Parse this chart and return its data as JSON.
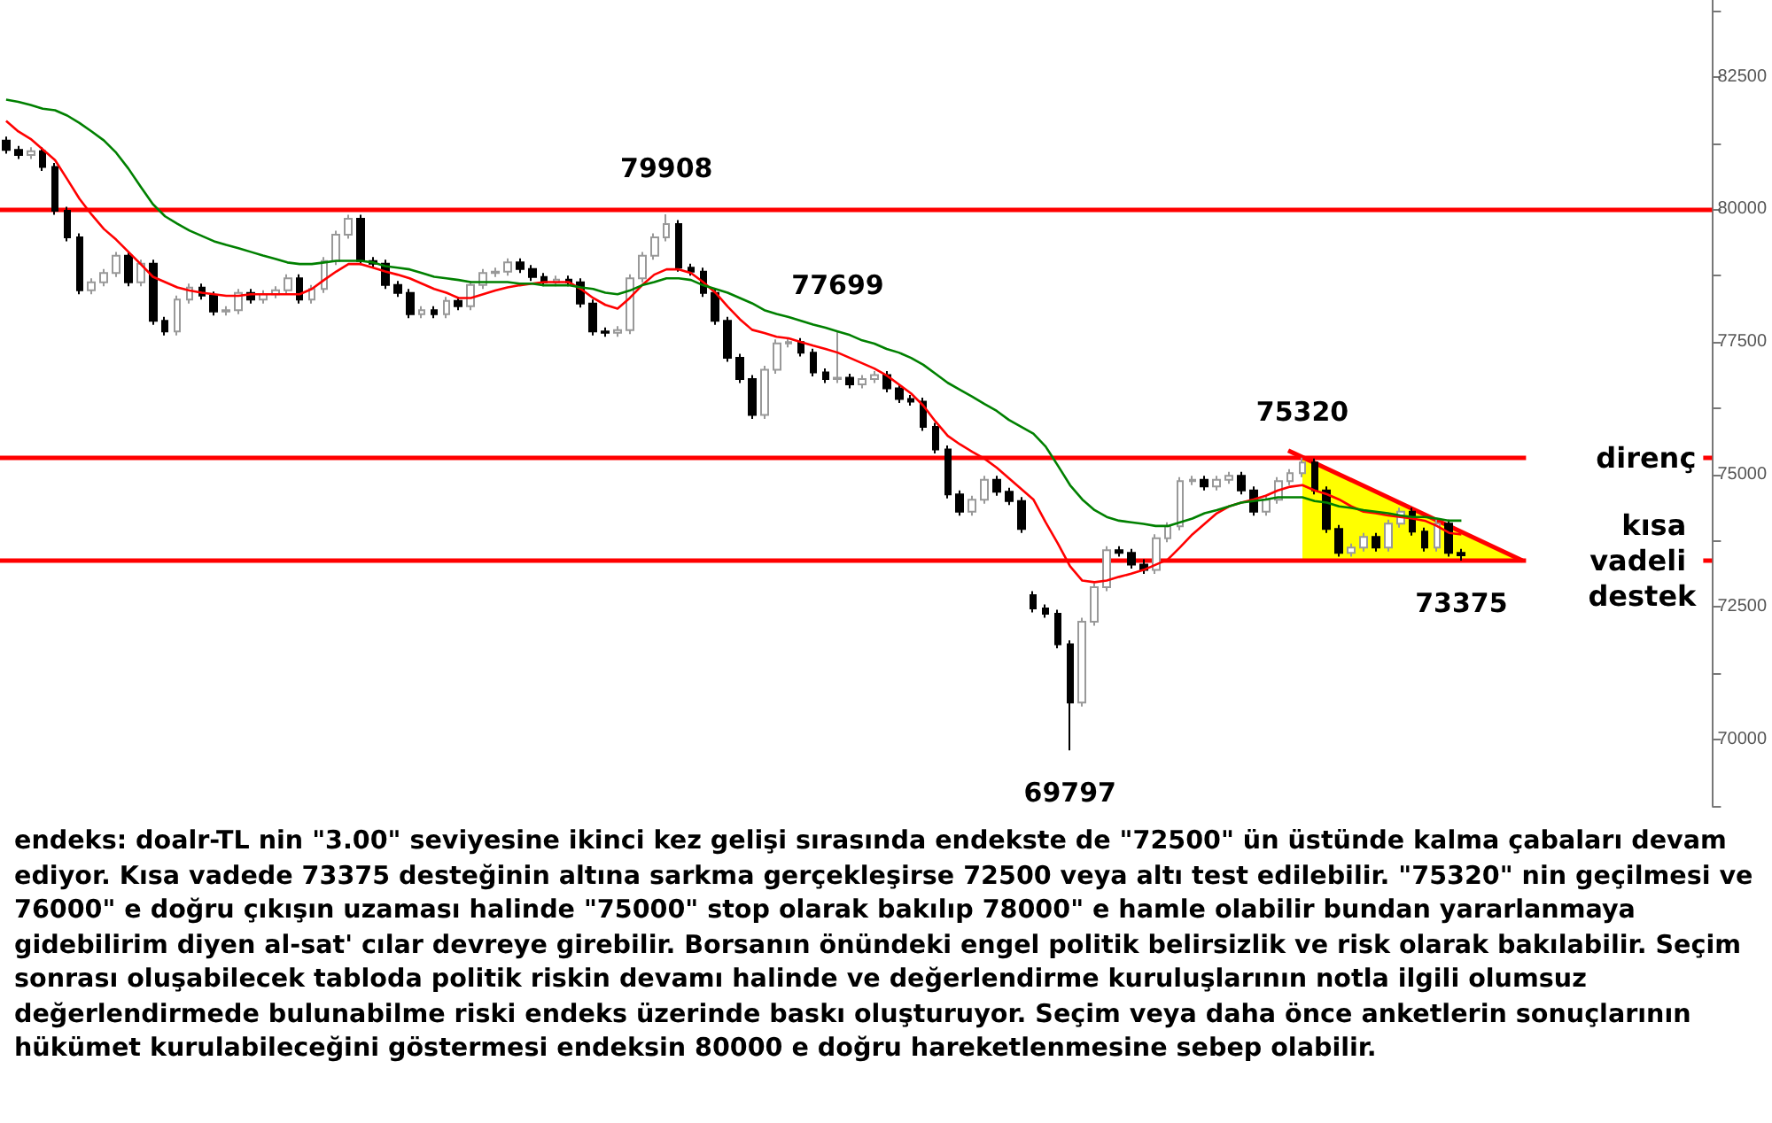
{
  "chart_data": {
    "type": "candlestick",
    "categories": [
      null,
      null,
      null,
      null,
      null,
      null,
      null,
      null,
      null,
      null,
      null,
      null,
      null,
      null,
      null,
      null,
      null,
      null,
      null,
      null,
      null,
      null,
      null,
      null,
      null,
      null,
      null,
      null,
      null,
      null,
      null,
      null,
      null,
      null,
      null,
      null,
      null,
      null,
      null,
      null,
      null,
      null,
      null,
      null,
      null,
      null,
      null,
      null,
      null,
      null,
      null,
      null,
      null,
      null,
      null,
      null,
      null,
      null,
      null,
      null,
      null,
      null,
      null,
      null,
      null,
      null,
      null,
      null,
      null,
      null,
      null,
      null,
      null,
      null,
      null,
      null,
      null,
      null,
      null,
      null,
      null,
      null,
      null,
      null,
      null,
      null,
      null,
      null,
      null,
      null,
      null,
      null,
      null,
      null,
      null,
      null,
      null,
      null,
      null,
      null,
      null,
      null,
      null,
      null,
      null,
      null,
      null,
      null,
      null,
      null,
      null,
      null,
      null,
      null,
      null,
      null,
      null,
      null,
      null,
      null,
      null,
      null,
      null,
      null,
      null,
      null,
      null,
      null,
      null,
      null,
      null,
      null,
      null,
      null,
      null,
      null,
      null,
      null,
      null,
      null
    ],
    "ohlc": [
      [
        81300,
        81375,
        81050,
        81125
      ],
      [
        81125,
        81200,
        80950,
        81025
      ],
      [
        81025,
        81175,
        80950,
        81100
      ],
      [
        81100,
        81175,
        80725,
        80800
      ],
      [
        80800,
        80875,
        79900,
        79975
      ],
      [
        79975,
        80050,
        79400,
        79475
      ],
      [
        79475,
        79550,
        78400,
        78475
      ],
      [
        78475,
        78700,
        78400,
        78625
      ],
      [
        78625,
        78875,
        78550,
        78800
      ],
      [
        78800,
        79200,
        78725,
        79125
      ],
      [
        79125,
        79200,
        78550,
        78625
      ],
      [
        78625,
        79050,
        78550,
        78975
      ],
      [
        78975,
        79050,
        77825,
        77900
      ],
      [
        77900,
        77975,
        77625,
        77700
      ],
      [
        77700,
        78375,
        77625,
        78300
      ],
      [
        78300,
        78600,
        78225,
        78525
      ],
      [
        78525,
        78600,
        78300,
        78375
      ],
      [
        78375,
        78450,
        78000,
        78075
      ],
      [
        78075,
        78175,
        78000,
        78100
      ],
      [
        78100,
        78500,
        78025,
        78425
      ],
      [
        78425,
        78500,
        78225,
        78300
      ],
      [
        78300,
        78475,
        78225,
        78400
      ],
      [
        78400,
        78550,
        78325,
        78475
      ],
      [
        78475,
        78775,
        78400,
        78700
      ],
      [
        78700,
        78775,
        78225,
        78300
      ],
      [
        78300,
        78575,
        78225,
        78500
      ],
      [
        78500,
        79100,
        78425,
        79025
      ],
      [
        79025,
        79600,
        78950,
        79525
      ],
      [
        79525,
        79900,
        79450,
        79825
      ],
      [
        79825,
        79900,
        78950,
        79025
      ],
      [
        79025,
        79100,
        78900,
        78975
      ],
      [
        78975,
        79050,
        78500,
        78575
      ],
      [
        78575,
        78650,
        78350,
        78425
      ],
      [
        78425,
        78500,
        77950,
        78025
      ],
      [
        78025,
        78175,
        77950,
        78100
      ],
      [
        78100,
        78175,
        77950,
        78025
      ],
      [
        78025,
        78350,
        77950,
        78275
      ],
      [
        78275,
        78350,
        78100,
        78175
      ],
      [
        78175,
        78650,
        78100,
        78575
      ],
      [
        78575,
        78875,
        78500,
        78800
      ],
      [
        78800,
        78900,
        78725,
        78825
      ],
      [
        78825,
        79075,
        78750,
        79000
      ],
      [
        79000,
        79075,
        78800,
        78875
      ],
      [
        78875,
        78950,
        78650,
        78725
      ],
      [
        78725,
        78800,
        78550,
        78625
      ],
      [
        78625,
        78750,
        78550,
        78675
      ],
      [
        78675,
        78750,
        78550,
        78625
      ],
      [
        78625,
        78700,
        78150,
        78225
      ],
      [
        78225,
        78300,
        77625,
        77700
      ],
      [
        77700,
        77775,
        77600,
        77675
      ],
      [
        77675,
        77800,
        77600,
        77725
      ],
      [
        77725,
        78775,
        77650,
        78700
      ],
      [
        78700,
        79200,
        78625,
        79125
      ],
      [
        79125,
        79550,
        79050,
        79475
      ],
      [
        79475,
        79908,
        79400,
        79725
      ],
      [
        79725,
        79800,
        78825,
        78900
      ],
      [
        78900,
        78975,
        78750,
        78825
      ],
      [
        78825,
        78900,
        78350,
        78425
      ],
      [
        78425,
        78500,
        77825,
        77900
      ],
      [
        77900,
        77975,
        77125,
        77200
      ],
      [
        77200,
        77275,
        76725,
        76800
      ],
      [
        76800,
        76875,
        76050,
        76125
      ],
      [
        76125,
        77050,
        76050,
        76975
      ],
      [
        76975,
        77550,
        76900,
        77475
      ],
      [
        77475,
        77575,
        77400,
        77500
      ],
      [
        77500,
        77575,
        77225,
        77300
      ],
      [
        77300,
        77375,
        76850,
        76925
      ],
      [
        76925,
        77000,
        76725,
        76800
      ],
      [
        76800,
        77699,
        76725,
        76825
      ],
      [
        76825,
        76900,
        76625,
        76700
      ],
      [
        76700,
        76875,
        76625,
        76800
      ],
      [
        76800,
        76950,
        76725,
        76875
      ],
      [
        76875,
        76950,
        76550,
        76625
      ],
      [
        76625,
        76700,
        76350,
        76425
      ],
      [
        76425,
        76500,
        76300,
        76375
      ],
      [
        76375,
        76450,
        75825,
        75900
      ],
      [
        75900,
        75975,
        75400,
        75475
      ],
      [
        75475,
        75550,
        74550,
        74625
      ],
      [
        74625,
        74700,
        74225,
        74300
      ],
      [
        74300,
        74600,
        74225,
        74525
      ],
      [
        74525,
        74975,
        74450,
        74900
      ],
      [
        74900,
        74975,
        74600,
        74675
      ],
      [
        74675,
        74750,
        74425,
        74500
      ],
      [
        74500,
        74575,
        73900,
        73975
      ],
      [
        72725,
        72800,
        72400,
        72475
      ],
      [
        72475,
        72550,
        72300,
        72375
      ],
      [
        72375,
        72450,
        71725,
        71800
      ],
      [
        71800,
        71875,
        69797,
        70700
      ],
      [
        70700,
        72300,
        70625,
        72225
      ],
      [
        72225,
        72950,
        72150,
        72875
      ],
      [
        72875,
        73650,
        72800,
        73575
      ],
      [
        73575,
        73650,
        73450,
        73525
      ],
      [
        73525,
        73600,
        73225,
        73300
      ],
      [
        73300,
        73400,
        73125,
        73200
      ],
      [
        73200,
        73875,
        73125,
        73800
      ],
      [
        73800,
        74100,
        73725,
        74025
      ],
      [
        74025,
        74950,
        73950,
        74875
      ],
      [
        74875,
        74975,
        74800,
        74900
      ],
      [
        74900,
        74975,
        74700,
        74775
      ],
      [
        74775,
        74975,
        74700,
        74900
      ],
      [
        74900,
        75050,
        74825,
        74975
      ],
      [
        74975,
        75050,
        74625,
        74700
      ],
      [
        74700,
        74775,
        74225,
        74300
      ],
      [
        74300,
        74600,
        74225,
        74525
      ],
      [
        74525,
        74950,
        74450,
        74875
      ],
      [
        74875,
        75100,
        74800,
        75025
      ],
      [
        75025,
        75320,
        74950,
        75225
      ],
      [
        75225,
        75300,
        74625,
        74700
      ],
      [
        74700,
        74775,
        73900,
        73975
      ],
      [
        73975,
        74050,
        73450,
        73525
      ],
      [
        73525,
        73700,
        73450,
        73625
      ],
      [
        73625,
        73900,
        73550,
        73825
      ],
      [
        73825,
        73900,
        73550,
        73625
      ],
      [
        73625,
        74150,
        73550,
        74075
      ],
      [
        74075,
        74375,
        74000,
        74300
      ],
      [
        74300,
        74375,
        73850,
        73925
      ],
      [
        73925,
        74000,
        73550,
        73625
      ],
      [
        73625,
        74150,
        73550,
        74075
      ],
      [
        74075,
        74150,
        73450,
        73525
      ],
      [
        73525,
        73600,
        73375,
        73475
      ],
      null,
      null,
      null,
      null,
      null,
      null,
      null,
      null,
      null,
      null,
      null,
      null,
      null,
      null,
      null,
      null,
      null,
      null,
      null,
      null
    ],
    "series": [
      {
        "type": "line",
        "color": "#ff0000",
        "values": [
          81670,
          81470,
          81330,
          81130,
          80930,
          80570,
          80200,
          79900,
          79630,
          79430,
          79200,
          78970,
          78730,
          78630,
          78530,
          78470,
          78430,
          78400,
          78370,
          78370,
          78400,
          78400,
          78400,
          78400,
          78400,
          78500,
          78670,
          78830,
          78970,
          78970,
          78900,
          78830,
          78770,
          78700,
          78600,
          78500,
          78430,
          78330,
          78330,
          78400,
          78470,
          78530,
          78570,
          78600,
          78630,
          78630,
          78630,
          78500,
          78330,
          78200,
          78130,
          78330,
          78570,
          78770,
          78870,
          78870,
          78800,
          78630,
          78430,
          78170,
          77930,
          77730,
          77670,
          77600,
          77570,
          77500,
          77430,
          77370,
          77300,
          77200,
          77100,
          77000,
          76870,
          76700,
          76530,
          76300,
          76000,
          75730,
          75570,
          75430,
          75300,
          75130,
          74930,
          74730,
          74530,
          74100,
          73700,
          73270,
          73000,
          72970,
          73000,
          73070,
          73130,
          73200,
          73300,
          73400,
          73630,
          73870,
          74070,
          74270,
          74400,
          74470,
          74530,
          74600,
          74700,
          74770,
          74800,
          74700,
          74630,
          74530,
          74400,
          74300,
          74270,
          74230,
          74200,
          74170,
          74130,
          74030,
          73900,
          73870,
          null,
          null,
          null,
          null,
          null,
          null,
          null,
          null,
          null,
          null,
          null,
          null,
          null,
          null,
          null,
          null,
          null,
          null,
          null,
          null
        ]
      },
      {
        "type": "line",
        "color": "#008000",
        "values": [
          82070,
          82030,
          81970,
          81900,
          81870,
          81770,
          81630,
          81470,
          81300,
          81070,
          80770,
          80430,
          80100,
          79870,
          79730,
          79600,
          79500,
          79400,
          79330,
          79270,
          79200,
          79130,
          79070,
          79000,
          78970,
          78970,
          79000,
          79030,
          79030,
          79030,
          79000,
          78930,
          78900,
          78870,
          78800,
          78730,
          78700,
          78670,
          78630,
          78630,
          78630,
          78630,
          78600,
          78600,
          78570,
          78570,
          78570,
          78530,
          78500,
          78430,
          78400,
          78470,
          78570,
          78630,
          78700,
          78700,
          78670,
          78570,
          78500,
          78430,
          78330,
          78230,
          78100,
          78030,
          77970,
          77900,
          77830,
          77770,
          77700,
          77630,
          77530,
          77470,
          77370,
          77300,
          77200,
          77070,
          76900,
          76730,
          76600,
          76470,
          76330,
          76200,
          76030,
          75900,
          75770,
          75530,
          75170,
          74800,
          74530,
          74330,
          74200,
          74130,
          74100,
          74070,
          74030,
          74030,
          74100,
          74170,
          74270,
          74330,
          74400,
          74470,
          74500,
          74530,
          74570,
          74570,
          74570,
          74500,
          74470,
          74400,
          74370,
          74330,
          74300,
          74270,
          74230,
          74200,
          74200,
          74170,
          74130,
          74130,
          null,
          null,
          null,
          null,
          null,
          null,
          null,
          null,
          null,
          null,
          null,
          null,
          null,
          null,
          null,
          null,
          null,
          null,
          null,
          null
        ]
      }
    ],
    "ylim": [
      68750,
      83950
    ],
    "yticks": [
      {
        "value": 68750,
        "label": null
      },
      70000,
      {
        "value": 71250,
        "label": null
      },
      72500,
      {
        "value": 73750,
        "label": null
      },
      75000,
      {
        "value": 76250,
        "label": null
      },
      77500,
      {
        "value": 78750,
        "label": null
      },
      80000,
      {
        "value": 81250,
        "label": null
      },
      82500,
      {
        "value": 83750,
        "label": null
      }
    ],
    "tick_labels": "y",
    "grid": false,
    "line_style": "solid",
    "ref_lines": [
      {
        "axis": "y",
        "value": 80000,
        "color": "#ff0000"
      },
      {
        "axis": "y",
        "value": 75320,
        "label": "direnç",
        "color": "#ff0000"
      },
      {
        "axis": "y",
        "value": 73375,
        "label": "kısa vadeli destek",
        "color": "#ff0000"
      }
    ],
    "annotations": [
      {
        "text": "79908",
        "y": 79908
      },
      {
        "text": "77699",
        "y": 77699
      },
      {
        "text": "75320",
        "y": 75320
      },
      {
        "text": "73375",
        "y": 73375
      },
      {
        "text": "69797",
        "y": 69797
      },
      "endeks: doalr-TL nin \"3.00\" seviyesine ikinci kez gelişi sırasında endekste de \"72500\" ün üstünde kalma çabaları devam ediyor. Kısa vadede 73375 desteğinin altına sarkma gerçekleşirse 72500 veya altı test edilebilir. \"75320\" nin geçilmesi ve 76000\" e doğru çıkışın uzaması halinde \"75000\" stop olarak bakılıp 78000\" e hamle olabilir bundan yararlanmaya gidebilirim diyen al-sat' cılar devreye girebilir. Borsanın önündeki engel politik belirsizlik ve risk olarak bakılabilir. Seçim sonrası oluşabilecek tabloda politik riskin devamı halinde ve değerlendirme kuruluşlarının notla ilgili olumsuz değerlendirmede bulunabilme riski endeks üzerinde baskı oluşturuyor. Seçim veya daha önce anketlerin sonuçlarının hükümet kurulabileceğini göstermesi endeksin 80000 e doğru hareketlenmesine sebep olabilir."
    ]
  }
}
